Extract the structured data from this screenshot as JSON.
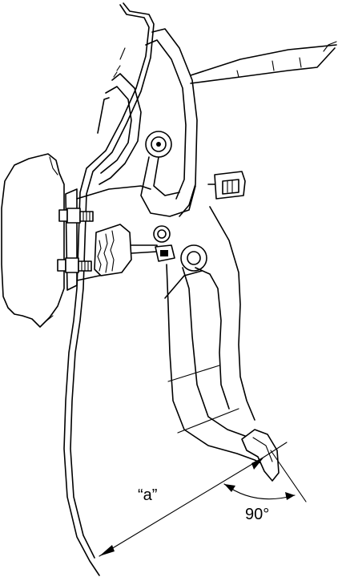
{
  "labels": {
    "distance": "“a”",
    "angle": "90°"
  },
  "colors": {
    "line": "#000000",
    "background": "#ffffff"
  }
}
